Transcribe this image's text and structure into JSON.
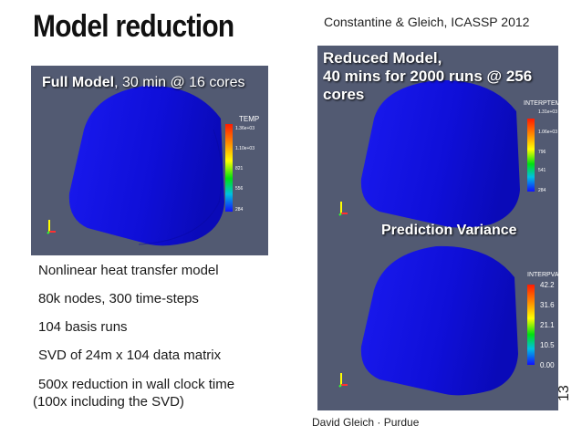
{
  "slide": {
    "title": "Model reduction",
    "citation": "Constantine & Gleich, ICASSP 2012",
    "footer": "David Gleich · Purdue",
    "page_number": "13"
  },
  "left_panel": {
    "label_bold": "Full Model",
    "label_rest": ", 30 min @ 16 cores",
    "legend": {
      "title": "TEMP",
      "ticks": [
        "1.36e+03",
        "1.10e+03",
        "821",
        "556",
        "284"
      ]
    }
  },
  "right_top_panel": {
    "label_line1": "Reduced Model,",
    "label_line2": "40 mins for 2000 runs @ 256",
    "label_line3": "cores",
    "legend": {
      "title": "INTERPTEMP",
      "ticks": [
        "1.31e+03",
        "1.06e+03",
        "796",
        "541",
        "284"
      ]
    }
  },
  "right_bottom_panel": {
    "label": "Prediction Variance",
    "legend": {
      "title": "INTERPVAR",
      "ticks": [
        "42.2",
        "31.6",
        "21.1",
        "10.5",
        "0.00"
      ]
    }
  },
  "bullets": [
    "Nonlinear heat transfer model",
    "80k nodes, 300 time-steps",
    "104 basis runs",
    "SVD of 24m x 104 data matrix",
    "500x reduction in wall clock time",
    "(100x including the SVD)"
  ],
  "colors": {
    "panel_background": "#525a72",
    "surface_blue": "#1010e0"
  }
}
